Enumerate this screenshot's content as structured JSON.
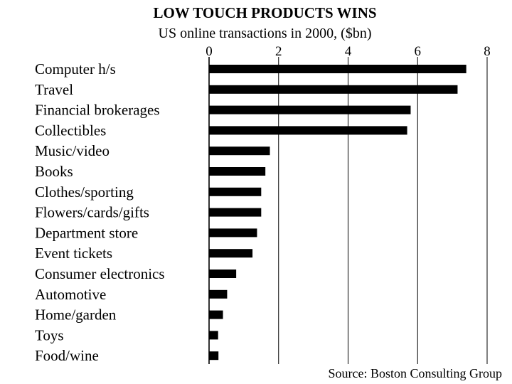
{
  "chart_data": {
    "type": "bar",
    "orientation": "horizontal",
    "title": "LOW TOUCH PRODUCTS WINS",
    "subtitle": "US online transactions in 2000, ($bn)",
    "source": "Source: Boston Consulting Group",
    "categories": [
      "Computer h/s",
      "Travel",
      "Financial brokerages",
      "Collectibles",
      "Music/video",
      "Books",
      "Clothes/sporting",
      "Flowers/cards/gifts",
      "Department store",
      "Event tickets",
      "Consumer electronics",
      "Automotive",
      "Home/garden",
      "Toys",
      "Food/wine"
    ],
    "values": [
      7.4,
      7.15,
      5.8,
      5.7,
      1.75,
      1.62,
      1.5,
      1.5,
      1.38,
      1.25,
      0.78,
      0.52,
      0.4,
      0.26,
      0.27
    ],
    "xticks": [
      "0",
      "2",
      "4",
      "6",
      "8"
    ],
    "xlim": [
      0,
      8
    ],
    "grid": true,
    "bar_color": "#000000",
    "legend": "none"
  }
}
